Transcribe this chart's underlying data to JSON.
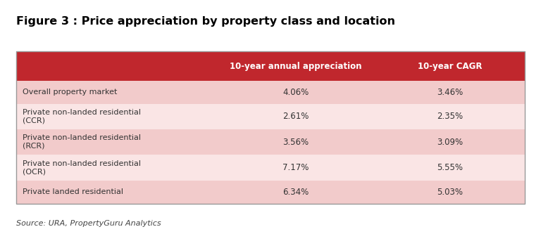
{
  "title": "Figure 3 : Price appreciation by property class and location",
  "source": "Source: URA, PropertyGuru Analytics",
  "col_headers": [
    "10-year annual appreciation",
    "10-year CAGR"
  ],
  "rows": [
    {
      "label": "Overall property market",
      "values": [
        "4.06%",
        "3.46%"
      ]
    },
    {
      "label": "Private non-landed residential\n(CCR)",
      "values": [
        "2.61%",
        "2.35%"
      ]
    },
    {
      "label": "Private non-landed residential\n(RCR)",
      "values": [
        "3.56%",
        "3.09%"
      ]
    },
    {
      "label": "Private non-landed residential\n(OCR)",
      "values": [
        "7.17%",
        "5.55%"
      ]
    },
    {
      "label": "Private landed residential",
      "values": [
        "6.34%",
        "5.03%"
      ]
    }
  ],
  "header_bg": "#C0272D",
  "header_text_color": "#FFFFFF",
  "row_bg_odd": "#F2CBCB",
  "row_bg_even": "#FAE5E5",
  "border_color": "#BBBBBB",
  "outer_border_color": "#999999",
  "title_color": "#000000",
  "source_color": "#444444",
  "cell_text_color": "#333333",
  "fig_bg": "#FFFFFF"
}
